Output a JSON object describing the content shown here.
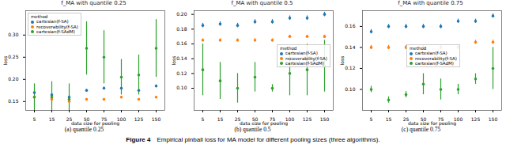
{
  "figure_label": "Figure 4",
  "caption": "Empirical pinball loss for MA model for different pooling sizes (three algorithms).",
  "chart_data": [
    {
      "type": "scatter",
      "title": "f_MA with quantile 0.25",
      "caption": "(a) quantile 0.25",
      "x_label": "data size for pooling",
      "y_label": "loss",
      "categories": [
        5,
        15,
        25,
        50,
        75,
        100,
        125,
        150
      ],
      "ylim": [
        0.13,
        0.355
      ],
      "yticks": [
        0.15,
        {
          "value": 0.2,
          "label": "0.20"
        },
        0.25,
        {
          "value": 0.3,
          "label": "0.30"
        }
      ],
      "grid": false,
      "legend": "upper left",
      "legend_title": "method",
      "marker": "circle",
      "series": [
        {
          "name": "cartesian(f-SA)",
          "color": "#1f77b4",
          "values": [
            0.17,
            0.165,
            0.16,
            0.175,
            0.18,
            0.18,
            0.175,
            0.185
          ],
          "errors": [
            0.003,
            0.003,
            0.003,
            0.003,
            0.003,
            0.003,
            0.003,
            0.003
          ]
        },
        {
          "name": "recoverability(f-SA)",
          "color": "#ff7f0e",
          "values": [
            0.16,
            0.155,
            0.15,
            0.155,
            0.155,
            0.16,
            0.155,
            0.16
          ],
          "errors": [
            0.002,
            0.002,
            0.002,
            0.002,
            0.002,
            0.002,
            0.002,
            0.002
          ]
        },
        {
          "name": "cartesian(f-SAdM)",
          "color": "#2ca02c",
          "values": [
            0.16,
            0.16,
            0.155,
            0.27,
            0.25,
            0.205,
            0.21,
            0.27
          ],
          "errors": [
            0.03,
            0.035,
            0.035,
            0.06,
            0.06,
            0.04,
            0.045,
            0.065
          ]
        }
      ]
    },
    {
      "type": "scatter",
      "title": "f_MA with quantile 0.5",
      "caption": "(b) quantile 0.5",
      "x_label": "data size for pooling",
      "y_label": "loss",
      "categories": [
        5,
        15,
        25,
        50,
        75,
        100,
        125,
        150
      ],
      "ylim": [
        0.07,
        0.205
      ],
      "yticks": [
        {
          "value": 0.1,
          "label": "0.10"
        },
        0.12,
        0.14,
        0.16,
        0.18,
        {
          "value": 0.2,
          "label": "0.20"
        }
      ],
      "grid": false,
      "legend": "center right",
      "legend_title": "method",
      "marker": "circle",
      "series": [
        {
          "name": "cartesian(f-SA)",
          "color": "#1f77b4",
          "values": [
            0.185,
            0.187,
            0.185,
            0.19,
            0.19,
            0.195,
            0.195,
            0.2
          ],
          "errors": [
            0.003,
            0.003,
            0.003,
            0.003,
            0.003,
            0.003,
            0.003,
            0.003
          ]
        },
        {
          "name": "recoverability(f-SA)",
          "color": "#ff7f0e",
          "values": [
            0.165,
            0.165,
            0.165,
            0.165,
            0.165,
            0.17,
            0.17,
            0.17
          ],
          "errors": [
            0.002,
            0.002,
            0.002,
            0.002,
            0.002,
            0.002,
            0.002,
            0.002
          ]
        },
        {
          "name": "cartesian(f-SAdM)",
          "color": "#2ca02c",
          "values": [
            0.125,
            0.11,
            0.1,
            0.115,
            0.1,
            0.12,
            0.125,
            0.13
          ],
          "errors": [
            0.035,
            0.025,
            0.02,
            0.02,
            0.005,
            0.03,
            0.035,
            0.035
          ]
        }
      ]
    },
    {
      "type": "scatter",
      "title": "f_MA with quantile 0.75",
      "caption": "(c) quantile 0.75",
      "x_label": "data size for pooling",
      "y_label": "loss",
      "categories": [
        5,
        15,
        25,
        50,
        75,
        100,
        125,
        150
      ],
      "ylim": [
        0.08,
        0.175
      ],
      "yticks": [
        {
          "value": 0.1,
          "label": "0.10"
        },
        0.12,
        0.14,
        0.16
      ],
      "grid": false,
      "legend": "center",
      "legend_title": "method",
      "marker": "circle",
      "series": [
        {
          "name": "cartesian(f-SA)",
          "color": "#1f77b4",
          "values": [
            0.155,
            0.16,
            0.16,
            0.16,
            0.16,
            0.165,
            0.165,
            0.17
          ],
          "errors": [
            0.002,
            0.002,
            0.002,
            0.002,
            0.002,
            0.002,
            0.002,
            0.002
          ]
        },
        {
          "name": "recoverability(f-SA)",
          "color": "#ff7f0e",
          "values": [
            0.14,
            0.14,
            0.14,
            0.14,
            0.14,
            0.14,
            0.145,
            0.145
          ],
          "errors": [
            0.002,
            0.002,
            0.002,
            0.002,
            0.002,
            0.002,
            0.002,
            0.002
          ]
        },
        {
          "name": "cartesian(f-SAdM)",
          "color": "#2ca02c",
          "values": [
            0.1,
            0.09,
            0.095,
            0.105,
            0.1,
            0.1,
            0.11,
            0.12
          ],
          "errors": [
            0.003,
            0.003,
            0.003,
            0.01,
            0.01,
            0.005,
            0.005,
            0.02
          ]
        }
      ]
    }
  ]
}
